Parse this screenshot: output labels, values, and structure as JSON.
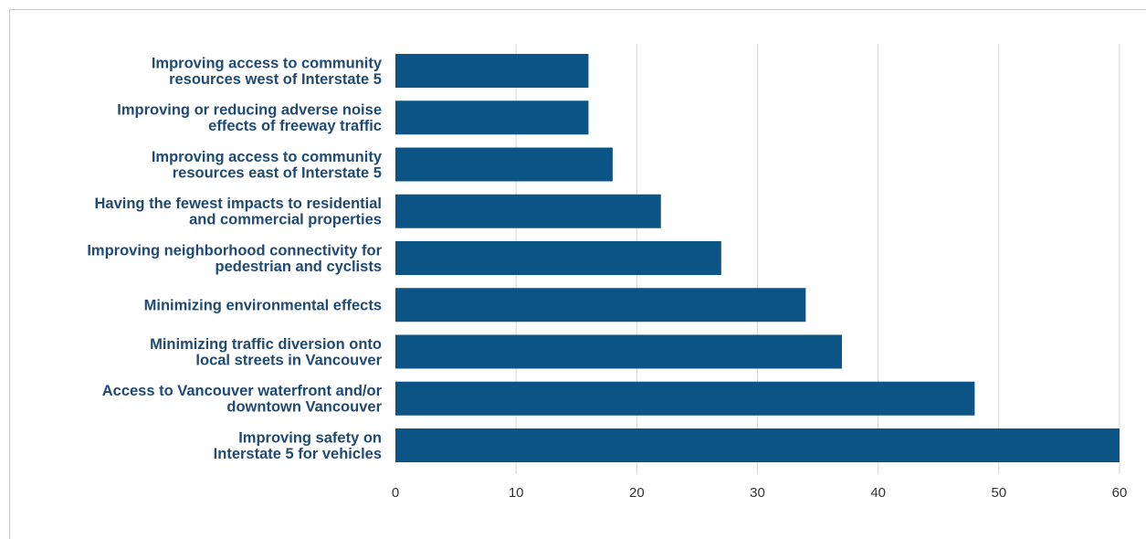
{
  "chart_data": {
    "type": "bar",
    "orientation": "horizontal",
    "categories": [
      [
        "Improving access to community",
        "resources west of Interstate 5"
      ],
      [
        "Improving or reducing adverse noise",
        "effects of freeway traffic"
      ],
      [
        "Improving access to community",
        "resources east of Interstate 5"
      ],
      [
        "Having the fewest impacts to residential",
        "and commercial properties"
      ],
      [
        "Improving neighborhood connectivity for",
        "pedestrian and cyclists"
      ],
      [
        "Minimizing environmental effects"
      ],
      [
        "Minimizing traffic diversion onto",
        "local streets in Vancouver"
      ],
      [
        "Access to Vancouver waterfront and/or",
        "downtown Vancouver"
      ],
      [
        "Improving safety on",
        "Interstate 5 for vehicles"
      ]
    ],
    "values": [
      16,
      16,
      18,
      22,
      27,
      34,
      37,
      48,
      60
    ],
    "xlim": [
      0,
      60
    ],
    "xticks": [
      0,
      10,
      20,
      30,
      40,
      50,
      60
    ],
    "tick_labels": [
      "0",
      "10",
      "20",
      "30",
      "40",
      "50",
      "60"
    ],
    "title": "",
    "xlabel": "",
    "ylabel": "",
    "grid": "vertical",
    "legend": "none",
    "bar_color": "#0d5486"
  }
}
